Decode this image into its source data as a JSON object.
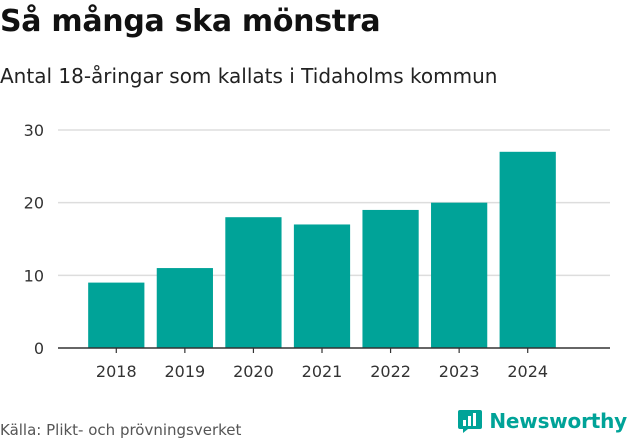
{
  "title": "Så många ska mönstra",
  "subtitle": "Antal 18-åringar som kallats i Tidaholms kommun",
  "source": "Källa: Plikt- och prövningsverket",
  "brand": "Newsworthy",
  "colors": {
    "bar": "#00a398",
    "brand": "#00a398",
    "grid": "#dddddd"
  },
  "chart_data": {
    "type": "bar",
    "categories": [
      "2018",
      "2019",
      "2020",
      "2021",
      "2022",
      "2023",
      "2024"
    ],
    "values": [
      9,
      11,
      18,
      17,
      19,
      20,
      27
    ],
    "yticks": [
      0,
      10,
      20,
      30
    ],
    "ylim": [
      0,
      30
    ],
    "title": "Så många ska mönstra",
    "subtitle": "Antal 18-åringar som kallats i Tidaholms kommun",
    "xlabel": "",
    "ylabel": "",
    "grid": true
  }
}
